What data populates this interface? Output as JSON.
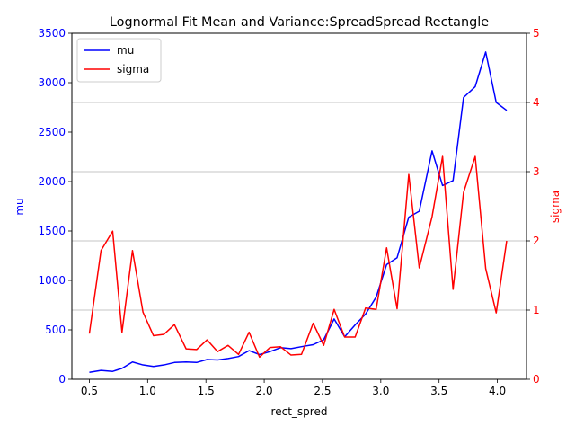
{
  "chart_data": {
    "type": "line",
    "title": "Lognormal Fit Mean and Variance:SpreadSpread Rectangle",
    "xlabel": "rect_spred",
    "ylabel_left": "mu",
    "ylabel_right": "sigma",
    "xlim": [
      0.35,
      4.25
    ],
    "ylim_left": [
      0,
      3500
    ],
    "ylim_right": [
      0,
      5
    ],
    "x_ticks": [
      0.5,
      1.0,
      1.5,
      2.0,
      2.5,
      3.0,
      3.5,
      4.0
    ],
    "x_tick_labels": [
      "0.5",
      "1.0",
      "1.5",
      "2.0",
      "2.5",
      "3.0",
      "3.5",
      "4.0"
    ],
    "y_left_ticks": [
      0,
      500,
      1000,
      1500,
      2000,
      2500,
      3000,
      3500
    ],
    "y_left_tick_labels": [
      "0",
      "500",
      "1000",
      "1500",
      "2000",
      "2500",
      "3000",
      "3500"
    ],
    "y_right_ticks": [
      0,
      1,
      2,
      3,
      4,
      5
    ],
    "y_right_tick_labels": [
      "0",
      "1",
      "2",
      "3",
      "4",
      "5"
    ],
    "grid": "horizontal gridlines on right axis",
    "legend_position": "upper-left",
    "colors": {
      "mu": "#0000ff",
      "sigma": "#ff0000",
      "grid": "#b0b0b0"
    },
    "x": [
      0.5,
      0.6,
      0.7,
      0.78,
      0.87,
      0.96,
      1.05,
      1.14,
      1.23,
      1.33,
      1.42,
      1.51,
      1.6,
      1.69,
      1.78,
      1.87,
      1.96,
      2.05,
      2.14,
      2.23,
      2.32,
      2.42,
      2.51,
      2.6,
      2.69,
      2.78,
      2.87,
      2.96,
      3.05,
      3.14,
      3.24,
      3.33,
      3.44,
      3.53,
      3.62,
      3.71,
      3.81,
      3.9,
      3.99,
      4.08
    ],
    "series": [
      {
        "name": "mu",
        "axis": "left",
        "values": [
          70,
          90,
          80,
          110,
          175,
          145,
          130,
          145,
          170,
          175,
          170,
          200,
          195,
          210,
          230,
          290,
          250,
          280,
          320,
          310,
          330,
          350,
          400,
          610,
          430,
          550,
          660,
          830,
          1160,
          1230,
          1640,
          1700,
          2310,
          1960,
          2010,
          2850,
          2960,
          3310,
          2800,
          2720
        ]
      },
      {
        "name": "sigma",
        "axis": "right",
        "values": [
          0.66,
          1.86,
          2.14,
          0.68,
          1.86,
          0.97,
          0.63,
          0.65,
          0.79,
          0.44,
          0.43,
          0.57,
          0.4,
          0.49,
          0.36,
          0.68,
          0.32,
          0.46,
          0.47,
          0.35,
          0.36,
          0.81,
          0.49,
          1.01,
          0.61,
          0.61,
          1.03,
          1.01,
          1.9,
          1.02,
          2.96,
          1.61,
          2.35,
          3.22,
          1.3,
          2.7,
          3.22,
          1.6,
          0.96,
          2.0
        ]
      }
    ]
  }
}
